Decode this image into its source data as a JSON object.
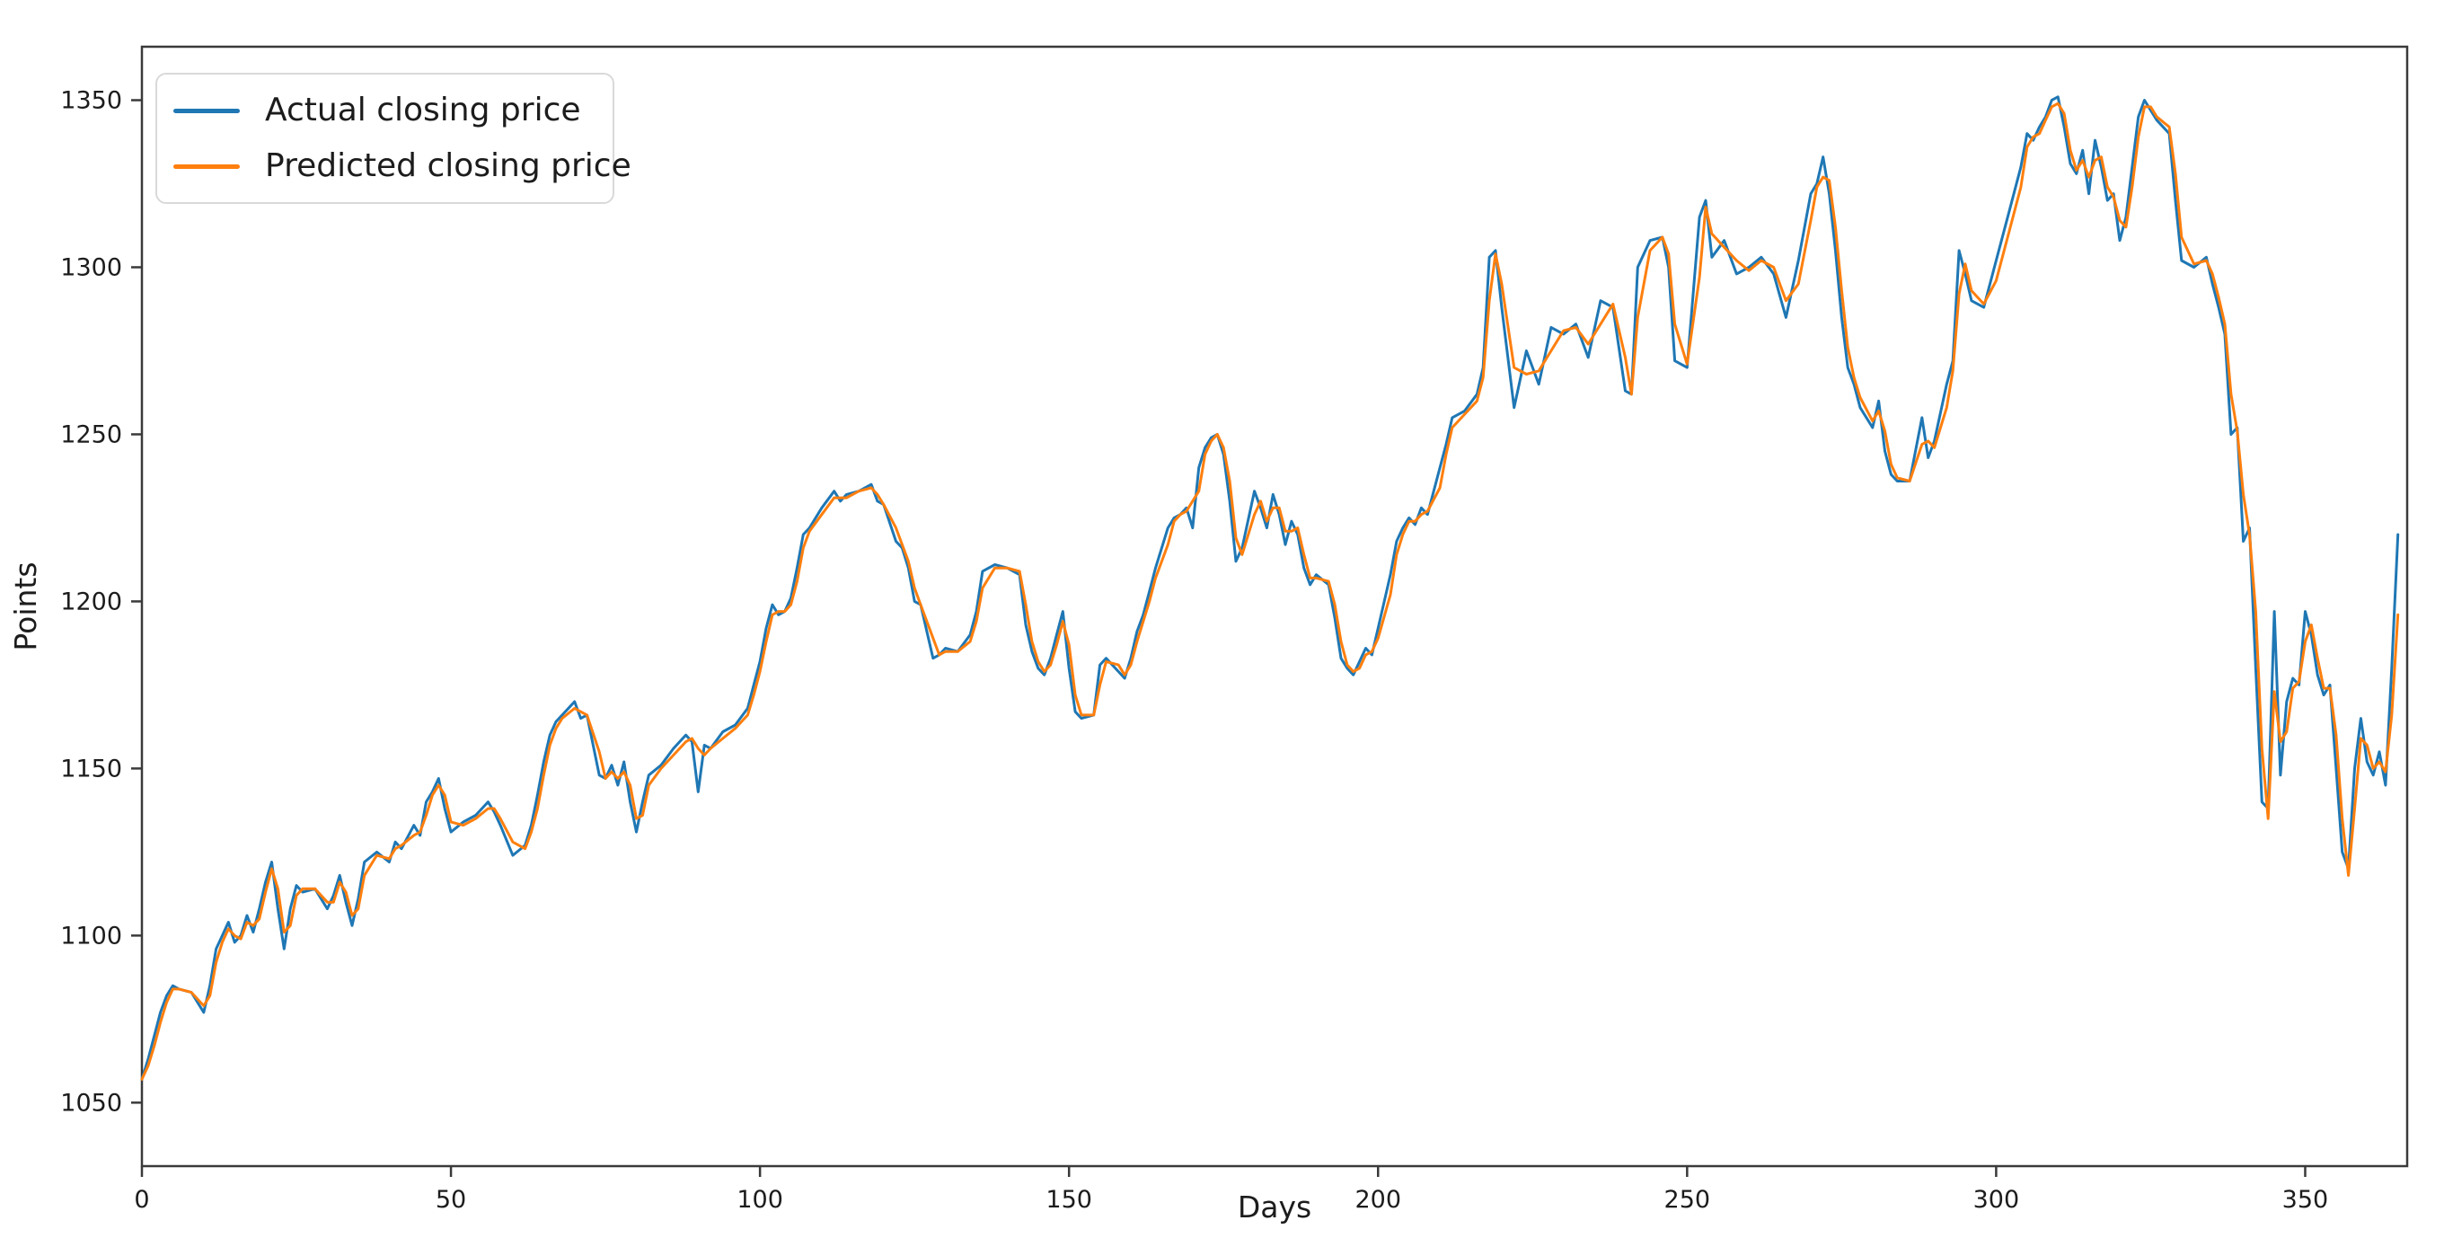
{
  "figure": {
    "background_color": "#ffffff",
    "frame_color": "#3a3a3a",
    "text_color": "#1c1c1c"
  },
  "chart_data": {
    "type": "line",
    "title": "",
    "xlabel": "Days",
    "ylabel": "Points",
    "x_ticks": [
      0,
      50,
      100,
      150,
      200,
      250,
      300,
      350
    ],
    "y_ticks": [
      1050,
      1100,
      1150,
      1200,
      1250,
      1300,
      1350
    ],
    "xlim": [
      0,
      366.5
    ],
    "ylim": [
      1031,
      1366
    ],
    "grid": false,
    "legend_position": "upper left",
    "days": [
      0,
      1,
      2,
      3,
      4,
      5,
      6,
      8,
      10,
      11,
      12,
      13,
      14,
      15,
      16,
      17,
      18,
      19,
      20,
      21,
      22,
      23,
      24,
      25,
      26,
      28,
      30,
      31,
      32,
      33,
      34,
      35,
      36,
      38,
      40,
      41,
      42,
      44,
      45,
      46,
      47,
      48,
      49,
      50,
      52,
      54,
      56,
      57,
      58,
      60,
      62,
      63,
      64,
      65,
      66,
      67,
      68,
      70,
      71,
      72,
      74,
      75,
      76,
      77,
      78,
      79,
      80,
      81,
      82,
      84,
      86,
      88,
      89,
      90,
      91,
      92,
      94,
      96,
      98,
      99,
      100,
      101,
      102,
      103,
      104,
      105,
      106,
      107,
      108,
      110,
      112,
      113,
      114,
      116,
      118,
      119,
      120,
      122,
      123,
      124,
      125,
      126,
      128,
      129,
      130,
      132,
      134,
      135,
      136,
      138,
      140,
      142,
      143,
      144,
      145,
      146,
      147,
      148,
      149,
      150,
      151,
      152,
      154,
      155,
      156,
      158,
      159,
      160,
      161,
      162,
      163,
      164,
      166,
      167,
      168,
      169,
      170,
      171,
      172,
      173,
      174,
      175,
      176,
      177,
      178,
      180,
      181,
      182,
      183,
      184,
      185,
      186,
      187,
      188,
      189,
      190,
      192,
      193,
      194,
      195,
      196,
      197,
      198,
      199,
      200,
      202,
      203,
      204,
      205,
      206,
      207,
      208,
      210,
      211,
      212,
      214,
      216,
      217,
      218,
      219,
      220,
      222,
      224,
      226,
      228,
      230,
      232,
      234,
      236,
      238,
      240,
      241,
      242,
      244,
      246,
      247,
      248,
      250,
      252,
      253,
      254,
      256,
      258,
      260,
      262,
      264,
      266,
      268,
      270,
      271,
      272,
      273,
      274,
      275,
      276,
      277,
      278,
      280,
      281,
      282,
      283,
      284,
      286,
      288,
      289,
      290,
      292,
      293,
      294,
      295,
      296,
      298,
      300,
      302,
      304,
      305,
      306,
      307,
      308,
      309,
      310,
      311,
      312,
      313,
      314,
      315,
      316,
      317,
      318,
      319,
      320,
      321,
      322,
      323,
      324,
      325,
      326,
      328,
      329,
      330,
      332,
      334,
      335,
      336,
      337,
      338,
      339,
      340,
      341,
      342,
      343,
      344,
      345,
      346,
      347,
      348,
      349,
      350,
      351,
      352,
      353,
      354,
      355,
      356,
      357,
      358,
      359,
      360,
      361,
      362,
      363,
      364,
      365
    ],
    "series": [
      {
        "name": "Actual closing price",
        "color": "#1f77b4",
        "values": [
          1057,
          1063,
          1070,
          1077,
          1082,
          1085,
          1084,
          1083,
          1077,
          1085,
          1096,
          1100,
          1104,
          1098,
          1100,
          1106,
          1101,
          1108,
          1116,
          1122,
          1108,
          1096,
          1108,
          1115,
          1113,
          1114,
          1108,
          1112,
          1118,
          1110,
          1103,
          1111,
          1122,
          1125,
          1122,
          1128,
          1126,
          1133,
          1130,
          1140,
          1143,
          1147,
          1138,
          1131,
          1134,
          1136,
          1140,
          1137,
          1133,
          1124,
          1127,
          1133,
          1142,
          1152,
          1160,
          1164,
          1166,
          1170,
          1165,
          1166,
          1148,
          1147,
          1151,
          1145,
          1152,
          1140,
          1131,
          1140,
          1148,
          1151,
          1156,
          1160,
          1158,
          1143,
          1157,
          1156,
          1161,
          1163,
          1168,
          1175,
          1182,
          1192,
          1199,
          1196,
          1197,
          1201,
          1210,
          1220,
          1222,
          1228,
          1233,
          1230,
          1232,
          1233,
          1235,
          1230,
          1229,
          1218,
          1216,
          1210,
          1200,
          1199,
          1183,
          1184,
          1186,
          1185,
          1190,
          1197,
          1209,
          1211,
          1210,
          1208,
          1193,
          1185,
          1180,
          1178,
          1183,
          1190,
          1197,
          1180,
          1167,
          1165,
          1166,
          1181,
          1183,
          1179,
          1177,
          1183,
          1191,
          1196,
          1203,
          1210,
          1222,
          1225,
          1226,
          1228,
          1222,
          1240,
          1246,
          1249,
          1250,
          1244,
          1230,
          1212,
          1216,
          1233,
          1228,
          1222,
          1232,
          1226,
          1217,
          1224,
          1220,
          1210,
          1205,
          1208,
          1205,
          1195,
          1183,
          1180,
          1178,
          1182,
          1186,
          1184,
          1192,
          1208,
          1218,
          1222,
          1225,
          1223,
          1228,
          1226,
          1240,
          1247,
          1255,
          1257,
          1262,
          1270,
          1303,
          1305,
          1288,
          1258,
          1275,
          1265,
          1282,
          1280,
          1283,
          1273,
          1290,
          1288,
          1263,
          1262,
          1300,
          1308,
          1309,
          1300,
          1272,
          1270,
          1315,
          1320,
          1303,
          1308,
          1298,
          1300,
          1303,
          1298,
          1285,
          1302,
          1322,
          1325,
          1333,
          1322,
          1305,
          1285,
          1270,
          1265,
          1258,
          1252,
          1260,
          1245,
          1238,
          1236,
          1236,
          1255,
          1243,
          1248,
          1265,
          1272,
          1305,
          1298,
          1290,
          1288,
          1302,
          1316,
          1330,
          1340,
          1338,
          1342,
          1345,
          1350,
          1351,
          1342,
          1331,
          1328,
          1335,
          1322,
          1338,
          1330,
          1320,
          1322,
          1308,
          1315,
          1330,
          1345,
          1350,
          1347,
          1344,
          1340,
          1320,
          1302,
          1300,
          1303,
          1295,
          1288,
          1280,
          1250,
          1252,
          1218,
          1222,
          1180,
          1140,
          1138,
          1197,
          1148,
          1170,
          1177,
          1175,
          1197,
          1190,
          1178,
          1172,
          1175,
          1150,
          1125,
          1120,
          1150,
          1165,
          1152,
          1148,
          1155,
          1145,
          1180,
          1220
        ]
      },
      {
        "name": "Predicted closing price",
        "color": "#ff7f0e",
        "values": [
          1057,
          1061,
          1067,
          1074,
          1080,
          1084,
          1084,
          1083,
          1079,
          1082,
          1092,
          1098,
          1102,
          1100,
          1099,
          1104,
          1103,
          1105,
          1113,
          1120,
          1114,
          1101,
          1103,
          1112,
          1114,
          1114,
          1110,
          1110,
          1116,
          1113,
          1106,
          1108,
          1118,
          1124,
          1123,
          1126,
          1127,
          1130,
          1131,
          1136,
          1142,
          1145,
          1142,
          1134,
          1133,
          1135,
          1138,
          1138,
          1135,
          1128,
          1126,
          1131,
          1138,
          1148,
          1157,
          1162,
          1165,
          1168,
          1167,
          1166,
          1155,
          1147,
          1149,
          1147,
          1149,
          1145,
          1135,
          1136,
          1145,
          1150,
          1154,
          1158,
          1159,
          1156,
          1154,
          1156,
          1159,
          1162,
          1166,
          1172,
          1179,
          1188,
          1196,
          1197,
          1197,
          1199,
          1206,
          1216,
          1221,
          1226,
          1231,
          1231,
          1231,
          1233,
          1234,
          1232,
          1229,
          1222,
          1217,
          1212,
          1204,
          1199,
          1189,
          1184,
          1185,
          1185,
          1188,
          1194,
          1204,
          1210,
          1210,
          1209,
          1199,
          1188,
          1182,
          1179,
          1181,
          1187,
          1194,
          1187,
          1172,
          1166,
          1166,
          1175,
          1182,
          1181,
          1178,
          1181,
          1188,
          1194,
          1200,
          1207,
          1217,
          1224,
          1226,
          1227,
          1230,
          1233,
          1244,
          1248,
          1250,
          1246,
          1236,
          1219,
          1214,
          1226,
          1230,
          1224,
          1228,
          1228,
          1221,
          1221,
          1222,
          1214,
          1207,
          1207,
          1206,
          1199,
          1188,
          1181,
          1179,
          1180,
          1184,
          1185,
          1189,
          1202,
          1214,
          1220,
          1224,
          1224,
          1226,
          1227,
          1234,
          1244,
          1252,
          1256,
          1260,
          1267,
          1290,
          1304,
          1295,
          1270,
          1268,
          1269,
          1275,
          1281,
          1282,
          1277,
          1283,
          1289,
          1273,
          1262,
          1285,
          1305,
          1309,
          1304,
          1283,
          1271,
          1297,
          1318,
          1310,
          1306,
          1302,
          1299,
          1302,
          1300,
          1290,
          1295,
          1314,
          1324,
          1327,
          1326,
          1312,
          1293,
          1276,
          1267,
          1261,
          1254,
          1257,
          1251,
          1241,
          1237,
          1236,
          1247,
          1248,
          1246,
          1258,
          1269,
          1292,
          1301,
          1293,
          1289,
          1296,
          1310,
          1324,
          1336,
          1339,
          1340,
          1344,
          1348,
          1349,
          1346,
          1335,
          1329,
          1332,
          1327,
          1332,
          1333,
          1324,
          1321,
          1314,
          1312,
          1324,
          1339,
          1348,
          1348,
          1345,
          1342,
          1328,
          1309,
          1301,
          1302,
          1298,
          1291,
          1283,
          1262,
          1251,
          1232,
          1220,
          1197,
          1156,
          1135,
          1173,
          1158,
          1161,
          1174,
          1176,
          1188,
          1193,
          1183,
          1174,
          1174,
          1160,
          1135,
          1118,
          1138,
          1159,
          1157,
          1150,
          1152,
          1149,
          1166,
          1196
        ]
      }
    ]
  },
  "legend": {
    "actual_label": "Actual closing price",
    "predicted_label": "Predicted closing price"
  }
}
